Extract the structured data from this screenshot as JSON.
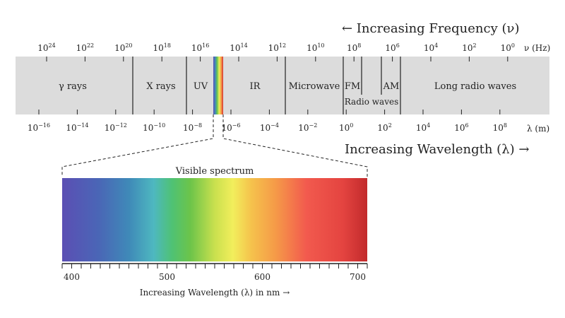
{
  "frequency_header": "← Increasing Frequency (ν)",
  "wavelength_header": "Increasing Wavelength (λ) →",
  "frequency_unit": "ν (Hz)",
  "wavelength_unit": "λ (m)",
  "frequency_ticks": [
    {
      "base": "10",
      "exp": "24"
    },
    {
      "base": "10",
      "exp": "22"
    },
    {
      "base": "10",
      "exp": "20"
    },
    {
      "base": "10",
      "exp": "18"
    },
    {
      "base": "10",
      "exp": "16"
    },
    {
      "base": "10",
      "exp": "14"
    },
    {
      "base": "10",
      "exp": "12"
    },
    {
      "base": "10",
      "exp": "10"
    },
    {
      "base": "10",
      "exp": "8"
    },
    {
      "base": "10",
      "exp": "6"
    },
    {
      "base": "10",
      "exp": "4"
    },
    {
      "base": "10",
      "exp": "2"
    },
    {
      "base": "10",
      "exp": "0"
    }
  ],
  "wavelength_ticks": [
    {
      "base": "10",
      "exp": "−16"
    },
    {
      "base": "10",
      "exp": "−14"
    },
    {
      "base": "10",
      "exp": "−12"
    },
    {
      "base": "10",
      "exp": "−10"
    },
    {
      "base": "10",
      "exp": "−8"
    },
    {
      "base": "10",
      "exp": "−6"
    },
    {
      "base": "10",
      "exp": "−4"
    },
    {
      "base": "10",
      "exp": "−2"
    },
    {
      "base": "10",
      "exp": "0"
    },
    {
      "base": "10",
      "exp": "2"
    },
    {
      "base": "10",
      "exp": "4"
    },
    {
      "base": "10",
      "exp": "6"
    },
    {
      "base": "10",
      "exp": "8"
    }
  ],
  "bands": {
    "gamma": "γ rays",
    "xray": "X rays",
    "uv": "UV",
    "ir": "IR",
    "microwave": "Microwave",
    "fm": "FM",
    "am": "AM",
    "radio": "Radio waves",
    "long_radio": "Long radio waves"
  },
  "visible": {
    "title": "Visible spectrum",
    "axis_label": "Increasing Wavelength (λ) in nm →",
    "ticks": [
      "400",
      "500",
      "600",
      "700"
    ],
    "colors": {
      "violet": "#5b4fb4",
      "blue": "#3f8ab8",
      "cyan": "#4eb8c0",
      "green": "#6cc44a",
      "yellow": "#f2ee5c",
      "orange": "#f59a48",
      "red": "#f25a4e",
      "dark_red": "#d63032",
      "band_gray": "#dcdcdc"
    }
  }
}
